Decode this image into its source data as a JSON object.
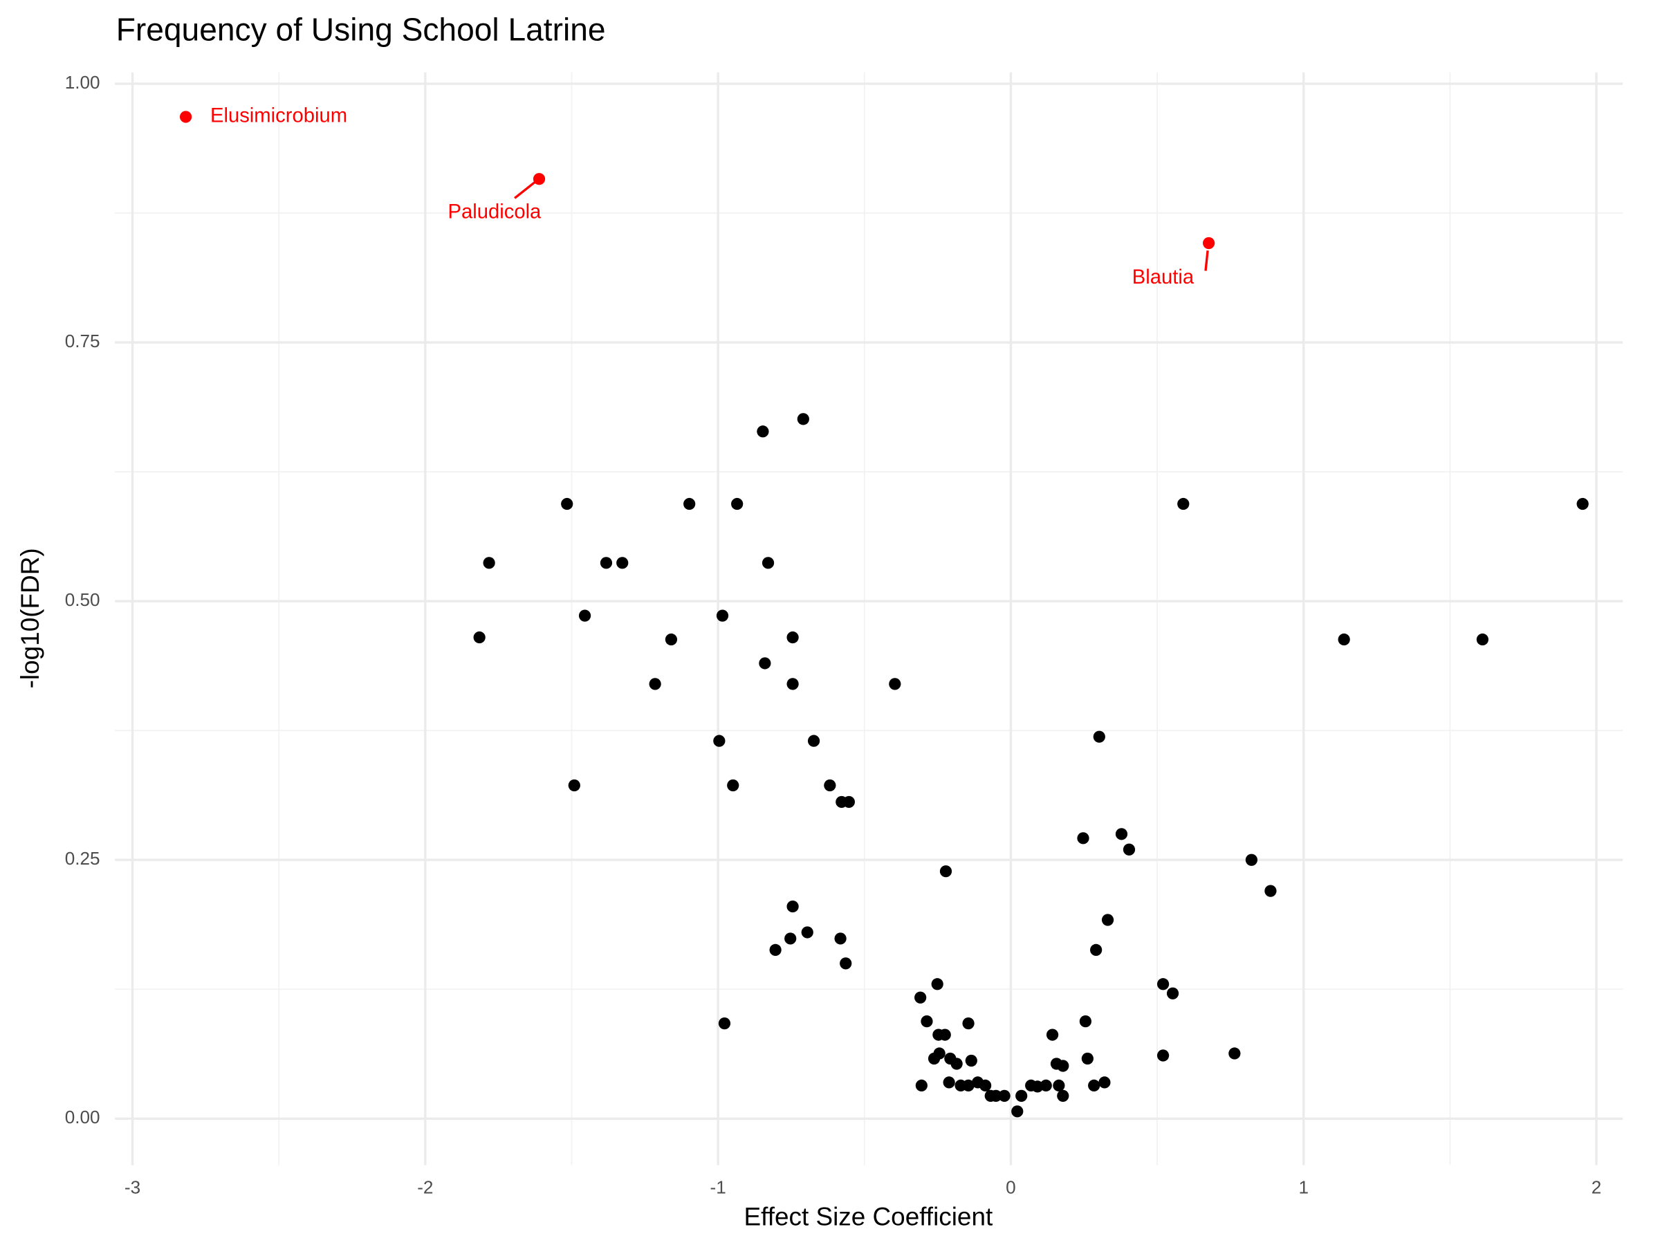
{
  "chart_data": {
    "type": "scatter",
    "title": "Frequency of Using School Latrine",
    "x_label": "Effect Size Coefficient",
    "y_label": "-log10(FDR)",
    "color": "#000000",
    "highlight_color": "#ff0000",
    "grid": true,
    "xlim": [
      -3.06,
      2.09
    ],
    "ylim": [
      -0.045,
      1.011
    ],
    "xticks": [
      -3,
      -2,
      -1,
      0,
      1,
      2
    ],
    "yticks": [
      {
        "value": 0,
        "label": "0.00"
      },
      {
        "value": 0.25,
        "label": "0.25"
      },
      {
        "value": 0.5,
        "label": "0.50"
      },
      {
        "value": 0.75,
        "label": "0.75"
      },
      {
        "value": 1,
        "label": "1.00"
      }
    ],
    "x": [
      -2.818,
      -1.611,
      0.676,
      -1.516,
      -1.782,
      -1.815,
      -1.455,
      -1.382,
      -1.327,
      -1.491,
      -1.215,
      -1.16,
      -1.098,
      -0.985,
      -0.996,
      -0.949,
      -0.935,
      -0.847,
      -0.709,
      -0.829,
      -0.84,
      -0.745,
      -0.745,
      -0.673,
      -0.618,
      -0.578,
      -0.553,
      -0.396,
      -0.978,
      -0.804,
      -0.753,
      -0.745,
      -0.695,
      -0.582,
      -0.564,
      -0.222,
      -0.309,
      -0.251,
      -0.287,
      -0.247,
      -0.225,
      -0.145,
      -0.262,
      -0.244,
      -0.207,
      -0.185,
      -0.135,
      -0.305,
      -0.211,
      -0.171,
      -0.145,
      -0.113,
      -0.087,
      -0.069,
      -0.051,
      -0.022,
      0.022,
      0.036,
      0.069,
      0.091,
      0.12,
      0.142,
      0.156,
      0.178,
      0.164,
      0.178,
      0.247,
      0.255,
      0.262,
      0.284,
      0.32,
      0.291,
      0.331,
      0.302,
      0.378,
      0.404,
      0.589,
      0.52,
      0.553,
      0.52,
      0.764,
      0.822,
      0.887,
      1.138,
      1.611,
      1.953
    ],
    "values": [
      0.968,
      0.908,
      0.846,
      0.594,
      0.537,
      0.465,
      0.486,
      0.537,
      0.537,
      0.322,
      0.42,
      0.463,
      0.594,
      0.486,
      0.365,
      0.322,
      0.594,
      0.664,
      0.676,
      0.537,
      0.44,
      0.465,
      0.42,
      0.365,
      0.322,
      0.306,
      0.306,
      0.42,
      0.092,
      0.163,
      0.174,
      0.205,
      0.18,
      0.174,
      0.15,
      0.239,
      0.117,
      0.13,
      0.094,
      0.081,
      0.081,
      0.092,
      0.058,
      0.063,
      0.058,
      0.053,
      0.056,
      0.032,
      0.035,
      0.032,
      0.032,
      0.035,
      0.032,
      0.022,
      0.022,
      0.022,
      0.007,
      0.022,
      0.032,
      0.031,
      0.032,
      0.081,
      0.053,
      0.051,
      0.032,
      0.022,
      0.271,
      0.094,
      0.058,
      0.032,
      0.035,
      0.163,
      0.192,
      0.369,
      0.275,
      0.26,
      0.594,
      0.13,
      0.121,
      0.061,
      0.063,
      0.25,
      0.22,
      0.463,
      0.463,
      0.594
    ],
    "labels": [
      "Elusimicrobium",
      "Paludicola",
      "Blautia",
      null,
      null,
      null,
      null,
      null,
      null,
      null,
      null,
      null,
      null,
      null,
      null,
      null,
      null,
      null,
      null,
      null,
      null,
      null,
      null,
      null,
      null,
      null,
      null,
      null,
      null,
      null,
      null,
      null,
      null,
      null,
      null,
      null,
      null,
      null,
      null,
      null,
      null,
      null,
      null,
      null,
      null,
      null,
      null,
      null,
      null,
      null,
      null,
      null,
      null,
      null,
      null,
      null,
      null,
      null,
      null,
      null,
      null,
      null,
      null,
      null,
      null,
      null,
      null,
      null,
      null,
      null,
      null,
      null,
      null,
      null,
      null,
      null,
      null,
      null,
      null,
      null,
      null,
      null,
      null,
      null,
      null,
      null
    ]
  }
}
